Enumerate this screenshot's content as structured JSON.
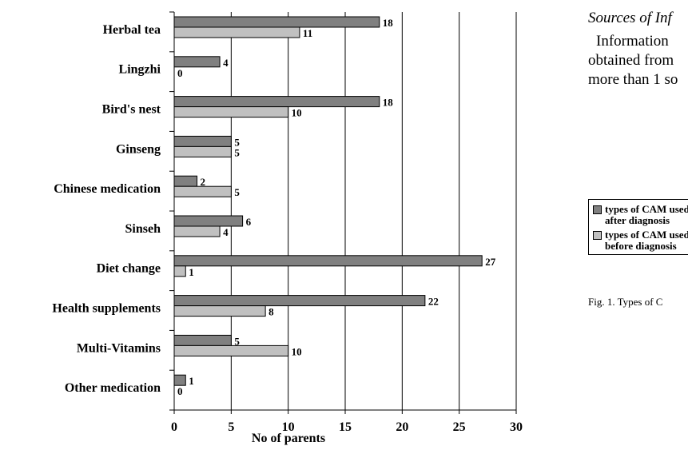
{
  "side_text": {
    "heading": "Sources of Inf",
    "lines": [
      "Information",
      "obtained from",
      "more than 1 so"
    ]
  },
  "figure_caption": "Fig. 1. Types of C",
  "chart_data": {
    "type": "bar",
    "orientation": "horizontal",
    "categories": [
      "Herbal tea",
      "Lingzhi",
      "Bird's nest",
      "Ginseng",
      "Chinese medication",
      "Sinseh",
      "Diet change",
      "Health supplements",
      "Multi-Vitamins",
      "Other medication"
    ],
    "series": [
      {
        "name": "types of CAM used after diagnosis",
        "color": "#808080",
        "values": [
          18,
          4,
          18,
          5,
          2,
          6,
          27,
          22,
          5,
          1
        ]
      },
      {
        "name": "types of CAM used before diagnosis",
        "color": "#c0c0c0",
        "values": [
          11,
          0,
          10,
          5,
          5,
          4,
          1,
          8,
          10,
          0
        ]
      }
    ],
    "xlabel": "No of parents",
    "ylabel": "",
    "xlim": [
      0,
      30
    ],
    "xticks": [
      "0",
      "5",
      "10",
      "15",
      "20",
      "25",
      "30"
    ],
    "grid": "vertical",
    "legend_position": "right",
    "legend_labels": [
      "types of CAM used\nafter diagnosis",
      "types of CAM used\nbefore diagnosis"
    ]
  }
}
